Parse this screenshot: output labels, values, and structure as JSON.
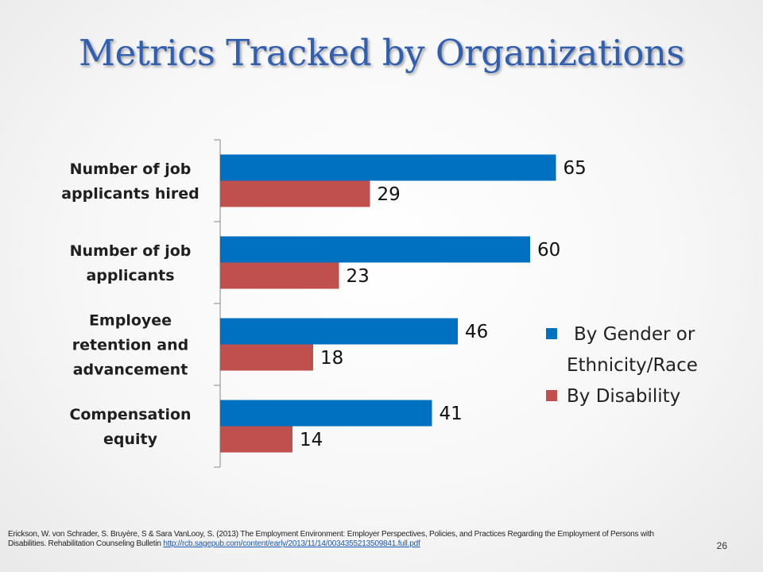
{
  "slide": {
    "title": "Metrics Tracked by Organizations",
    "page_number": "26",
    "citation_text": "Erickson, W. von Schrader, S. Bruyère, S & Sara VanLooy, S. (2013) The Employment Environment: Employer Perspectives, Policies, and Practices Regarding the Employment of Persons with Disabilities. Rehabilitation Counseling Bulletin",
    "citation_link": "http://rcb.sagepub.com/content/early/2013/11/14/0034355213509841.full.pdf"
  },
  "colors": {
    "series_gender": "#0070c0",
    "series_disability": "#c0504d",
    "axis": "#888888",
    "title": "#2f5fae"
  },
  "chart_data": {
    "type": "bar",
    "orientation": "horizontal",
    "categories": [
      [
        "Number of job",
        "applicants hired"
      ],
      [
        "Number of job",
        "applicants"
      ],
      [
        "Employee",
        "retention and",
        "advancement"
      ],
      [
        "Compensation",
        "equity"
      ]
    ],
    "series": [
      {
        "name": [
          "By Gender or",
          "Ethnicity/Race"
        ],
        "values": [
          65,
          60,
          46,
          41
        ]
      },
      {
        "name": [
          "By Disability"
        ],
        "values": [
          29,
          23,
          18,
          14
        ]
      }
    ],
    "xlim": [
      0,
      100
    ],
    "grid": false,
    "data_labels": true,
    "legend_position": "right"
  }
}
